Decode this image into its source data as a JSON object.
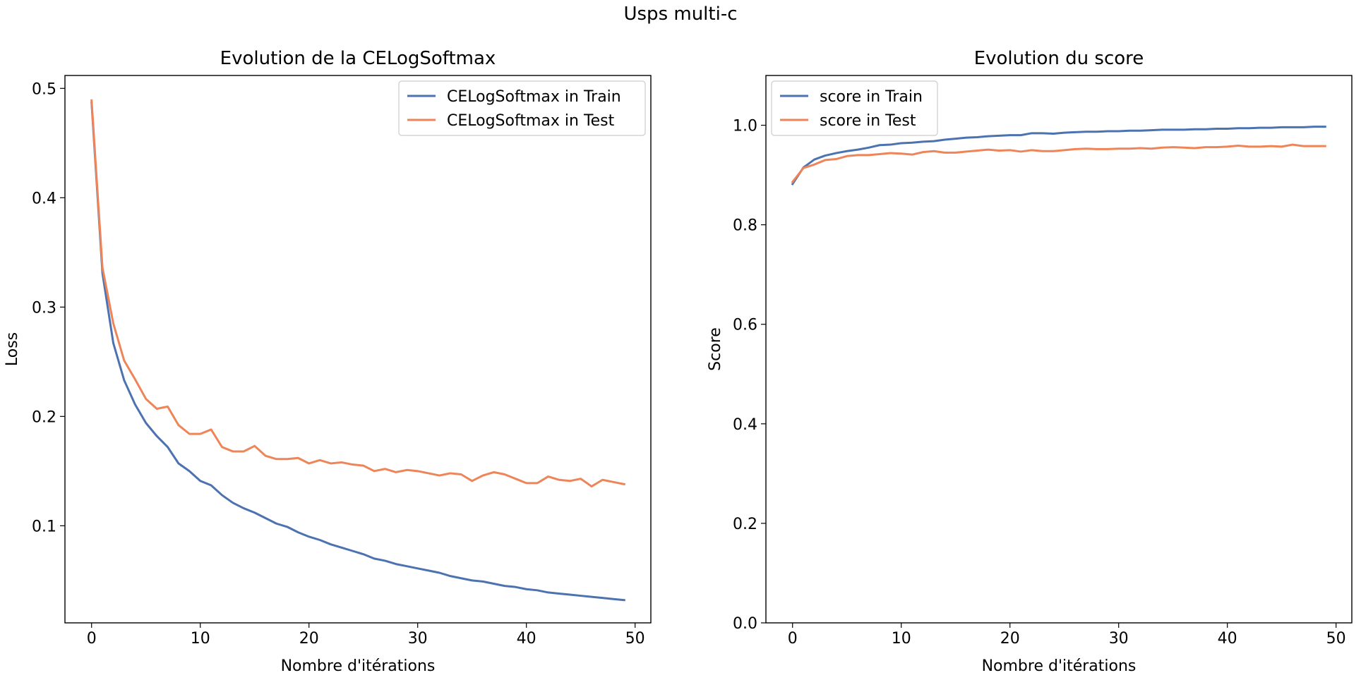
{
  "suptitle": "Usps multi-c",
  "colors": {
    "train": "#4c72b0",
    "test": "#ee8559"
  },
  "chart_data": [
    {
      "type": "line",
      "title": "Evolution de la CELogSoftmax",
      "xlabel": "Nombre d'itérations",
      "ylabel": "Loss",
      "xlim": [
        -2.45,
        51.45
      ],
      "ylim": [
        0.0112,
        0.5118
      ],
      "xticks": [
        0,
        10,
        20,
        30,
        40,
        50
      ],
      "xtick_labels": [
        "0",
        "10",
        "20",
        "30",
        "40",
        "50"
      ],
      "yticks": [
        0.1,
        0.2,
        0.3,
        0.4,
        0.5
      ],
      "ytick_labels": [
        "0.1",
        "0.2",
        "0.3",
        "0.4",
        "0.5"
      ],
      "grid": false,
      "legend_position": "upper right",
      "x": [
        0,
        1,
        2,
        3,
        4,
        5,
        6,
        7,
        8,
        9,
        10,
        11,
        12,
        13,
        14,
        15,
        16,
        17,
        18,
        19,
        20,
        21,
        22,
        23,
        24,
        25,
        26,
        27,
        28,
        29,
        30,
        31,
        32,
        33,
        34,
        35,
        36,
        37,
        38,
        39,
        40,
        41,
        42,
        43,
        44,
        45,
        46,
        47,
        48,
        49
      ],
      "series": [
        {
          "name": "CELogSoftmax in Train",
          "color": "#4c72b0",
          "values": [
            0.487,
            0.331,
            0.267,
            0.233,
            0.211,
            0.194,
            0.182,
            0.172,
            0.157,
            0.15,
            0.141,
            0.137,
            0.128,
            0.121,
            0.116,
            0.112,
            0.107,
            0.102,
            0.099,
            0.094,
            0.09,
            0.087,
            0.083,
            0.08,
            0.077,
            0.074,
            0.07,
            0.068,
            0.065,
            0.063,
            0.061,
            0.059,
            0.057,
            0.054,
            0.052,
            0.05,
            0.049,
            0.047,
            0.045,
            0.044,
            0.042,
            0.041,
            0.039,
            0.038,
            0.037,
            0.036,
            0.035,
            0.034,
            0.033,
            0.032
          ]
        },
        {
          "name": "CELogSoftmax in Test",
          "color": "#ee8559",
          "values": [
            0.489,
            0.336,
            0.285,
            0.251,
            0.234,
            0.216,
            0.207,
            0.209,
            0.192,
            0.184,
            0.184,
            0.188,
            0.172,
            0.168,
            0.168,
            0.173,
            0.164,
            0.161,
            0.161,
            0.162,
            0.157,
            0.16,
            0.157,
            0.158,
            0.156,
            0.155,
            0.15,
            0.152,
            0.149,
            0.151,
            0.15,
            0.148,
            0.146,
            0.148,
            0.147,
            0.141,
            0.146,
            0.149,
            0.147,
            0.143,
            0.139,
            0.139,
            0.145,
            0.142,
            0.141,
            0.143,
            0.136,
            0.142,
            0.14,
            0.138
          ]
        }
      ]
    },
    {
      "type": "line",
      "title": "Evolution du score",
      "xlabel": "Nombre d'itérations",
      "ylabel": "Score",
      "xlim": [
        -2.45,
        51.45
      ],
      "ylim": [
        0.0,
        1.1
      ],
      "xticks": [
        0,
        10,
        20,
        30,
        40,
        50
      ],
      "xtick_labels": [
        "0",
        "10",
        "20",
        "30",
        "40",
        "50"
      ],
      "yticks": [
        0.0,
        0.2,
        0.4,
        0.6,
        0.8,
        1.0
      ],
      "ytick_labels": [
        "0.0",
        "0.2",
        "0.4",
        "0.6",
        "0.8",
        "1.0"
      ],
      "grid": false,
      "legend_position": "upper left",
      "x": [
        0,
        1,
        2,
        3,
        4,
        5,
        6,
        7,
        8,
        9,
        10,
        11,
        12,
        13,
        14,
        15,
        16,
        17,
        18,
        19,
        20,
        21,
        22,
        23,
        24,
        25,
        26,
        27,
        28,
        29,
        30,
        31,
        32,
        33,
        34,
        35,
        36,
        37,
        38,
        39,
        40,
        41,
        42,
        43,
        44,
        45,
        46,
        47,
        48,
        49
      ],
      "series": [
        {
          "name": "score in Train",
          "color": "#4c72b0",
          "values": [
            0.882,
            0.915,
            0.931,
            0.939,
            0.944,
            0.948,
            0.951,
            0.955,
            0.96,
            0.961,
            0.964,
            0.965,
            0.967,
            0.968,
            0.971,
            0.973,
            0.975,
            0.976,
            0.978,
            0.979,
            0.98,
            0.98,
            0.984,
            0.984,
            0.983,
            0.985,
            0.986,
            0.987,
            0.987,
            0.988,
            0.988,
            0.989,
            0.989,
            0.99,
            0.991,
            0.991,
            0.991,
            0.992,
            0.992,
            0.993,
            0.993,
            0.994,
            0.994,
            0.995,
            0.995,
            0.996,
            0.996,
            0.996,
            0.997,
            0.997
          ]
        },
        {
          "name": "score in Test",
          "color": "#ee8559",
          "values": [
            0.886,
            0.914,
            0.921,
            0.93,
            0.932,
            0.938,
            0.94,
            0.94,
            0.942,
            0.944,
            0.943,
            0.941,
            0.946,
            0.948,
            0.945,
            0.945,
            0.947,
            0.949,
            0.951,
            0.949,
            0.95,
            0.947,
            0.95,
            0.948,
            0.948,
            0.95,
            0.952,
            0.953,
            0.952,
            0.952,
            0.953,
            0.953,
            0.954,
            0.953,
            0.955,
            0.956,
            0.955,
            0.954,
            0.956,
            0.956,
            0.957,
            0.959,
            0.957,
            0.957,
            0.958,
            0.957,
            0.961,
            0.958,
            0.958,
            0.958
          ]
        }
      ]
    }
  ]
}
